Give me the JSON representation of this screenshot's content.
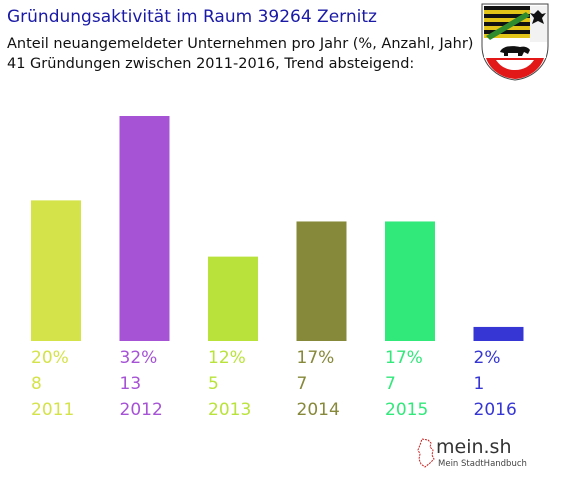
{
  "header": {
    "title": "Gründungsaktivität im Raum 39264 Zernitz",
    "subtitle_line1": "Anteil neuangemeldeter Unternehmen pro Jahr (%, Anzahl, Jahr)",
    "subtitle_line2": "41 Gründungen zwischen 2011-2016, Trend absteigend:"
  },
  "crest": {
    "icon": "coat-of-arms-icon"
  },
  "logo": {
    "main": "mein.sh",
    "sub": "Mein StadtHandbuch",
    "icon": "germany-map-icon"
  },
  "colors": {
    "title": "#1a1aa6",
    "bars": [
      "#d4e34a",
      "#a653d6",
      "#b9e33a",
      "#86883a",
      "#31e87a",
      "#3636d4"
    ]
  },
  "chart_data": {
    "type": "bar",
    "categories": [
      "2011",
      "2012",
      "2013",
      "2014",
      "2015",
      "2016"
    ],
    "series": [
      {
        "values": [
          20,
          32,
          12,
          17,
          17,
          2
        ]
      }
    ],
    "counts": [
      8,
      13,
      5,
      7,
      7,
      1
    ],
    "percent_labels": [
      "20%",
      "32%",
      "12%",
      "17%",
      "17%",
      "2%"
    ],
    "count_labels": [
      "8",
      "13",
      "5",
      "7",
      "7",
      "1"
    ],
    "ylim": [
      0,
      32
    ],
    "grid": false,
    "legend": "none"
  }
}
